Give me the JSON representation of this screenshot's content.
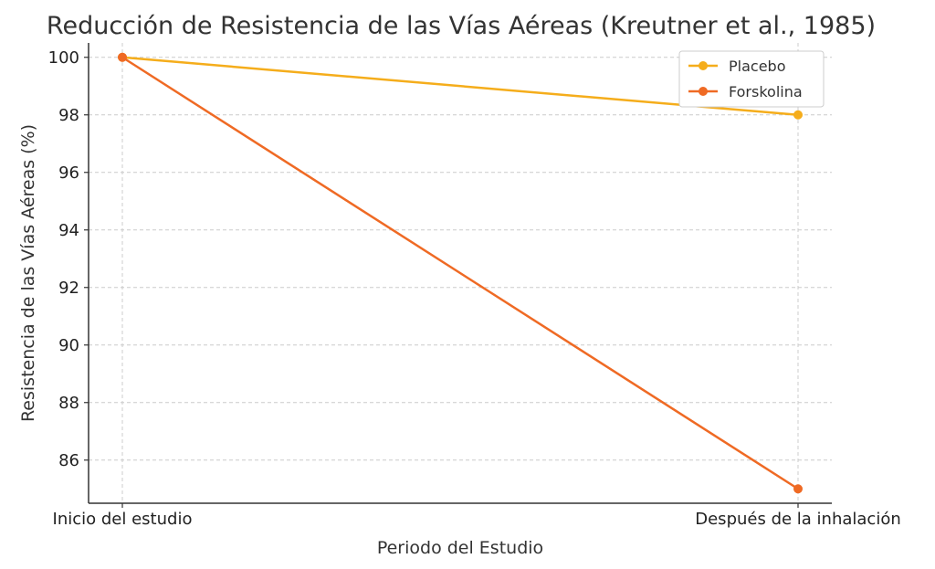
{
  "chart_data": {
    "type": "line",
    "title": "Reducción de Resistencia de las Vías Aéreas (Kreutner et al., 1985)",
    "xlabel": "Periodo del Estudio",
    "ylabel": "Resistencia de las Vías Aéreas (%)",
    "categories": [
      "Inicio del estudio",
      "Después de la inhalación"
    ],
    "series": [
      {
        "name": "Placebo",
        "values": [
          100,
          98
        ],
        "color": "#f5ad1b"
      },
      {
        "name": "Forskolina",
        "values": [
          100,
          85
        ],
        "color": "#ef6a24"
      }
    ],
    "ylim": [
      84.5,
      100.5
    ],
    "yticks": [
      86,
      88,
      90,
      92,
      94,
      96,
      98,
      100
    ],
    "grid": true,
    "legend_position": "top-right"
  }
}
